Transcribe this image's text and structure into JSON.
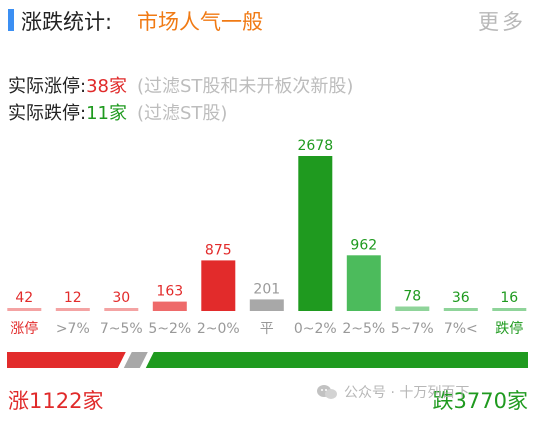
{
  "header": {
    "title": "涨跌统计:",
    "subtitle": "市场人气一般",
    "more_label": "更多"
  },
  "stats": {
    "limit_up_label": "实际涨停:",
    "limit_up_value": "38家",
    "limit_up_note": "(过滤ST股和未开板次新股)",
    "limit_down_label": "实际跌停:",
    "limit_down_value": "11家",
    "limit_down_note": "(过滤ST股)"
  },
  "colors": {
    "up_strong": "#e22b2b",
    "up_light": "#ee6a6a",
    "up_faint": "#f4a3a3",
    "flat": "#a8a8a8",
    "down_strong": "#1f9a1f",
    "down_light": "#4cbb5c",
    "down_faint": "#8fd49a"
  },
  "chart_data": {
    "type": "bar",
    "categories": [
      "涨停",
      ">7%",
      "7~5%",
      "5~2%",
      "2~0%",
      "平",
      "0~2%",
      "2~5%",
      "5~7%",
      "7%<",
      "跌停"
    ],
    "values": [
      42,
      12,
      30,
      163,
      875,
      201,
      2678,
      962,
      78,
      36,
      16
    ],
    "value_labels": [
      "42",
      "12",
      "30",
      "163",
      "875",
      "201",
      "2678",
      "962",
      "78",
      "36",
      "16"
    ],
    "bar_colors": [
      "#f4a3a3",
      "#f4a3a3",
      "#f4a3a3",
      "#ee6a6a",
      "#e22b2b",
      "#a8a8a8",
      "#1f9a1f",
      "#4cbb5c",
      "#8fd49a",
      "#8fd49a",
      "#8fd49a"
    ],
    "label_colors": [
      "#e22b2b",
      "#e22b2b",
      "#e22b2b",
      "#e22b2b",
      "#e22b2b",
      "#9a9a9a",
      "#1f9a1f",
      "#1f9a1f",
      "#1f9a1f",
      "#1f9a1f",
      "#1f9a1f"
    ],
    "category_colors": [
      "#e22b2b",
      "#999999",
      "#999999",
      "#999999",
      "#999999",
      "#999999",
      "#999999",
      "#999999",
      "#999999",
      "#999999",
      "#1f9a1f"
    ]
  },
  "summary": {
    "rise_text": "涨1122家",
    "fall_text": "跌3770家",
    "rise_count": 1122,
    "flat_count": 201,
    "fall_count": 3770
  },
  "watermark": {
    "text": "公众号 · 十万列百下"
  }
}
